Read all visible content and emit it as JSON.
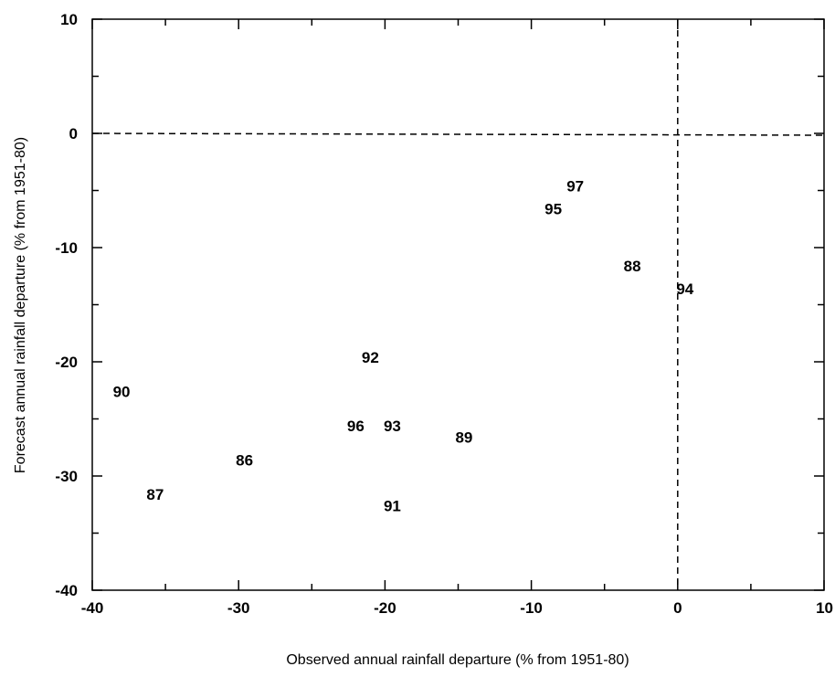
{
  "chart_data": {
    "type": "scatter",
    "title": "",
    "xlabel": "Observed annual rainfall departure (% from 1951-80)",
    "ylabel": "Forecast annual rainfall departure (% from 1951-80)",
    "xlim": [
      -40,
      10
    ],
    "ylim": [
      -40,
      10
    ],
    "x_ticks": [
      -40,
      -30,
      -20,
      -10,
      0,
      10
    ],
    "y_ticks": [
      10,
      0,
      -10,
      -20,
      -30,
      -40
    ],
    "x_tick_labels": [
      "-40",
      "-30",
      "-20",
      "-10",
      "0",
      "10"
    ],
    "y_tick_labels": [
      "10",
      "0",
      "-10",
      "-20",
      "-30",
      "-40"
    ],
    "grid": false,
    "reference_lines": [
      {
        "orientation": "horizontal",
        "value": 0,
        "style": "dashed"
      },
      {
        "orientation": "vertical",
        "value": 0,
        "style": "dashed"
      }
    ],
    "points": [
      {
        "label": "97",
        "x": -7.0,
        "y": -4.6
      },
      {
        "label": "95",
        "x": -8.5,
        "y": -6.6
      },
      {
        "label": "88",
        "x": -3.1,
        "y": -11.6
      },
      {
        "label": "94",
        "x": 0.5,
        "y": -13.6
      },
      {
        "label": "92",
        "x": -21.0,
        "y": -19.6
      },
      {
        "label": "90",
        "x": -38.0,
        "y": -22.6
      },
      {
        "label": "96",
        "x": -22.0,
        "y": -25.6
      },
      {
        "label": "93",
        "x": -19.5,
        "y": -25.6
      },
      {
        "label": "89",
        "x": -14.6,
        "y": -26.6
      },
      {
        "label": "86",
        "x": -29.6,
        "y": -28.6
      },
      {
        "label": "87",
        "x": -35.7,
        "y": -31.6
      },
      {
        "label": "91",
        "x": -19.5,
        "y": -32.6
      }
    ]
  }
}
